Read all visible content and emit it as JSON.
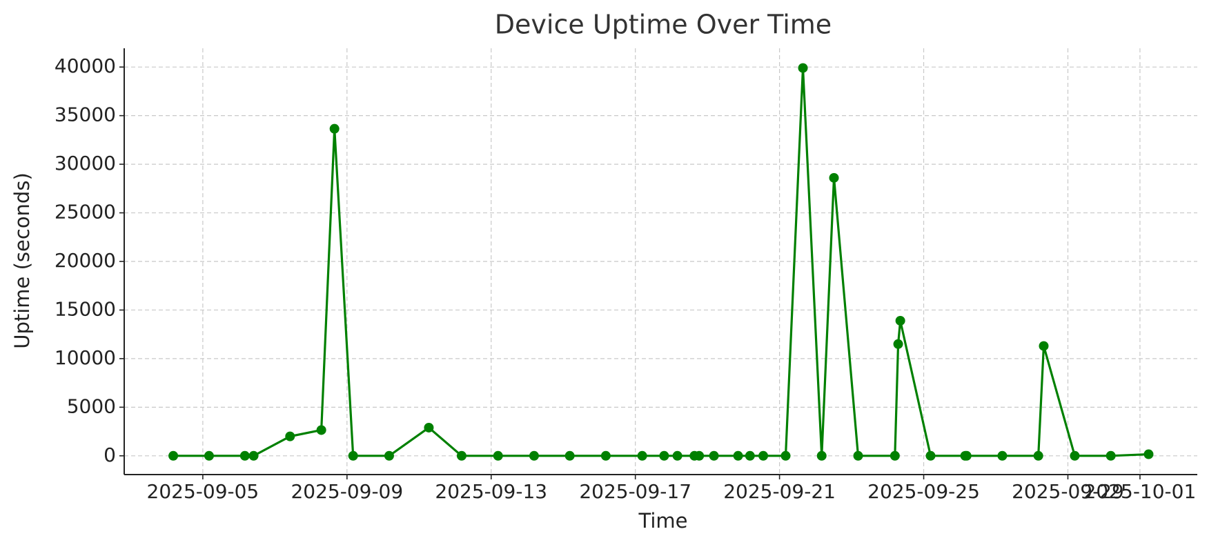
{
  "chart_data": {
    "type": "line",
    "title": "Device Uptime Over Time",
    "x_label": "Time",
    "y_label": "Uptime (seconds)",
    "x": [
      "2025-09-04T04:20",
      "2025-09-05T04:10",
      "2025-09-06T04:00",
      "2025-09-06T09:50",
      "2025-09-07T10:05",
      "2025-09-08T06:55",
      "2025-09-08T15:40",
      "2025-09-09T04:05",
      "2025-09-10T04:05",
      "2025-09-11T06:30",
      "2025-09-12T04:20",
      "2025-09-13T04:35",
      "2025-09-14T04:35",
      "2025-09-15T04:20",
      "2025-09-16T04:20",
      "2025-09-17T04:35",
      "2025-09-17T19:10",
      "2025-09-18T04:00",
      "2025-09-18T15:20",
      "2025-09-18T18:30",
      "2025-09-19T04:20",
      "2025-09-19T20:25",
      "2025-09-20T04:20",
      "2025-09-20T13:10",
      "2025-09-21T04:05",
      "2025-09-21T15:35",
      "2025-09-22T04:05",
      "2025-09-22T12:15",
      "2025-09-23T04:20",
      "2025-09-24T04:50",
      "2025-09-24T07:00",
      "2025-09-24T08:25",
      "2025-09-25T04:35",
      "2025-09-26T03:35",
      "2025-09-26T04:35",
      "2025-09-27T04:20",
      "2025-09-28T04:20",
      "2025-09-28T07:55",
      "2025-09-29T04:35",
      "2025-09-30T04:35",
      "2025-10-01T05:45"
    ],
    "series": [
      {
        "name": "Uptime",
        "color": "#008000",
        "values": [
          0,
          0,
          0,
          0,
          2000,
          2650,
          33650,
          0,
          0,
          2900,
          0,
          0,
          0,
          0,
          0,
          0,
          0,
          0,
          0,
          0,
          0,
          0,
          0,
          0,
          0,
          39900,
          0,
          28600,
          0,
          0,
          11500,
          13900,
          0,
          0,
          0,
          0,
          0,
          11300,
          0,
          0,
          160
        ]
      }
    ],
    "xlim": [
      "2025-09-02T19:40",
      "2025-10-02T14:10"
    ],
    "xticks": [
      "2025-09-05",
      "2025-09-09",
      "2025-09-13",
      "2025-09-17",
      "2025-09-21",
      "2025-09-25",
      "2025-09-29",
      "2025-10-01"
    ],
    "ylim": [
      -1930,
      41930
    ],
    "yticks": [
      0,
      5000,
      10000,
      15000,
      20000,
      25000,
      30000,
      35000,
      40000
    ],
    "grid": true
  }
}
